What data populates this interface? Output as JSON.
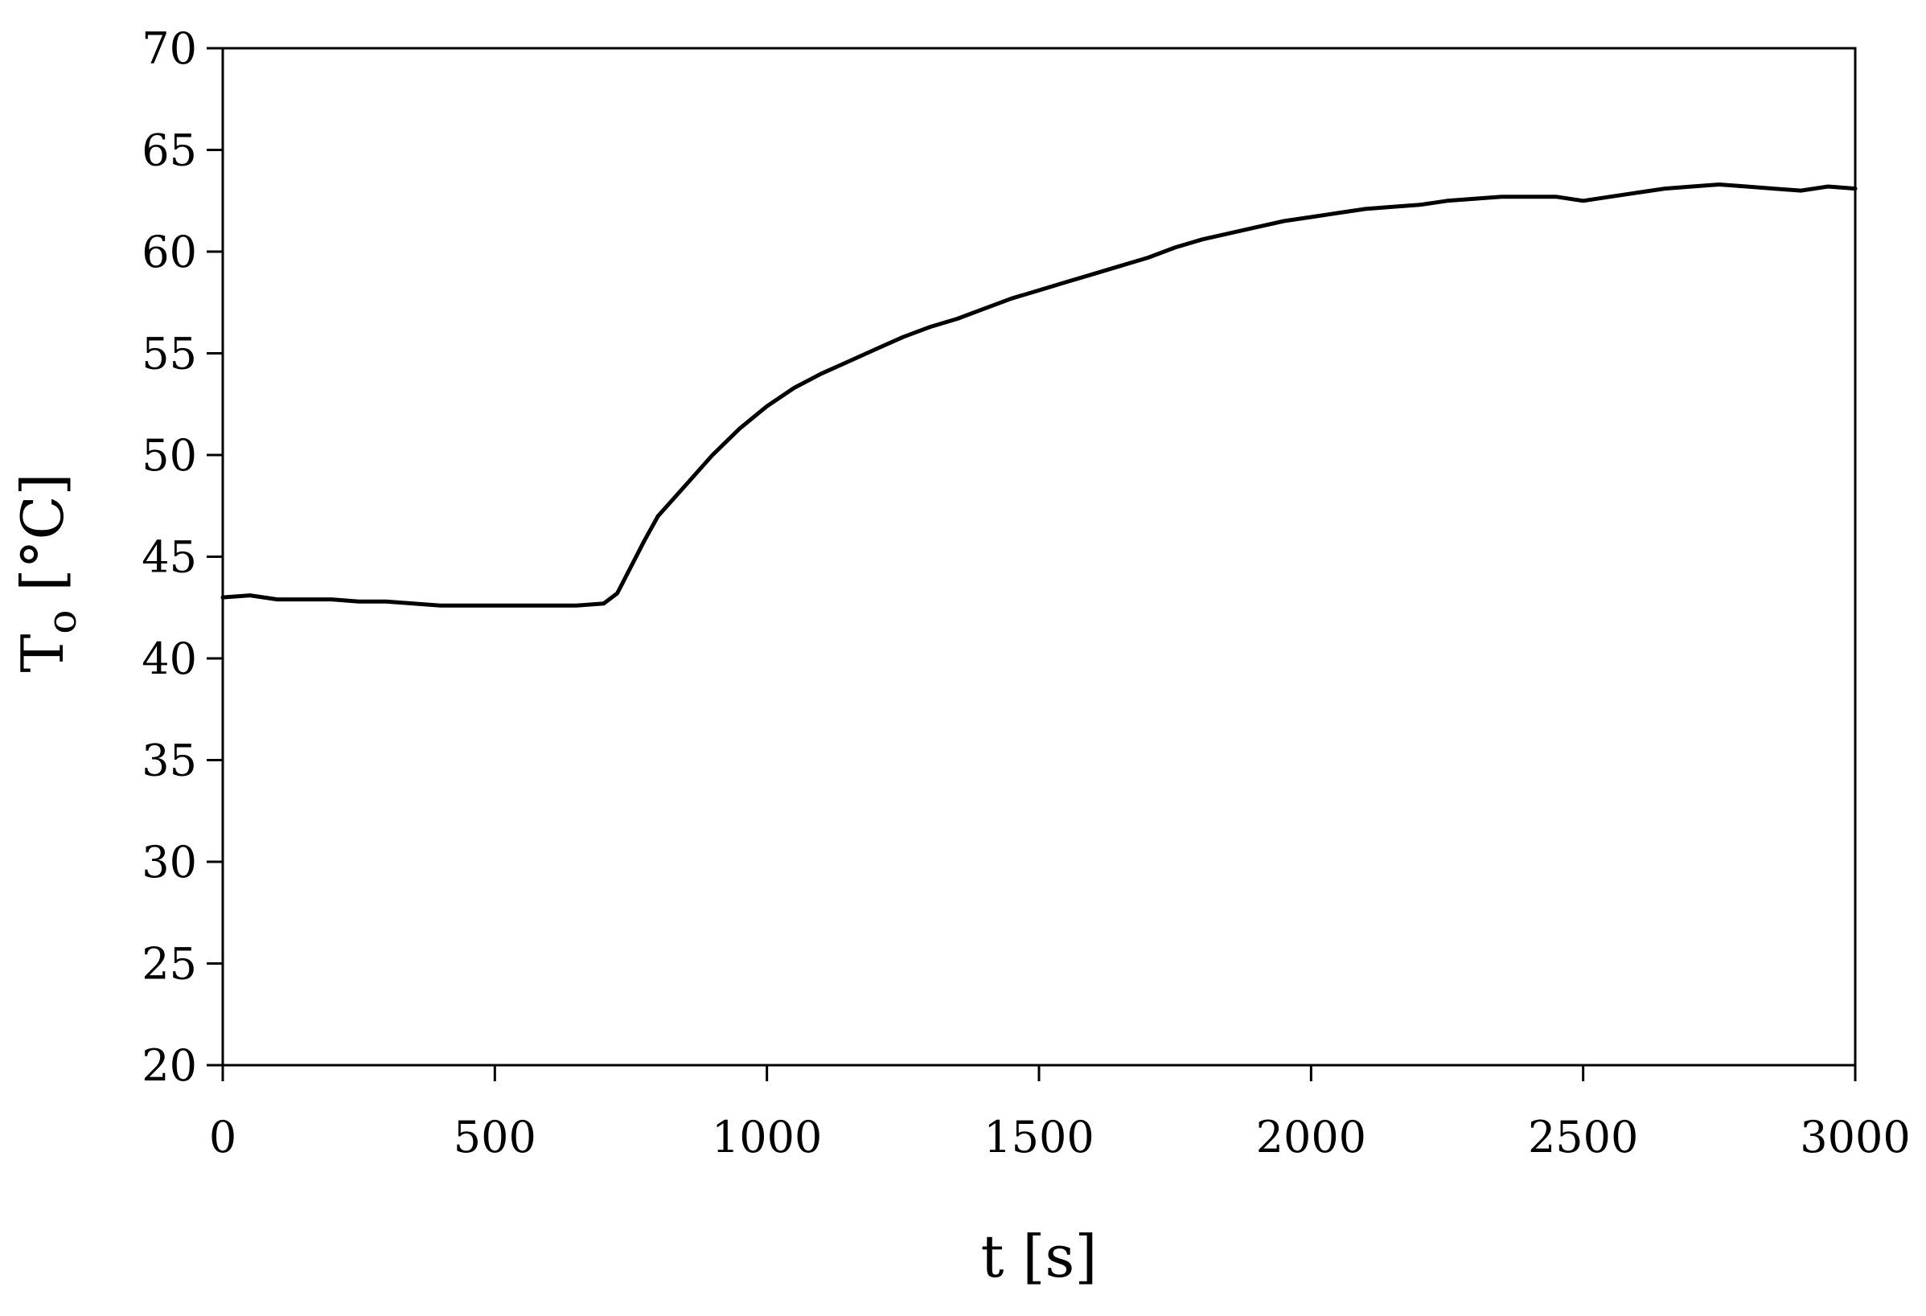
{
  "chart_data": {
    "type": "line",
    "title": "",
    "xlabel": "t [s]",
    "ylabel": {
      "main": "T",
      "sub": "o",
      "unit": " [°C]"
    },
    "xlim": [
      0,
      3000
    ],
    "ylim": [
      20,
      70
    ],
    "xticks": [
      0,
      500,
      1000,
      1500,
      2000,
      2500,
      3000
    ],
    "yticks": [
      20,
      25,
      30,
      35,
      40,
      45,
      50,
      55,
      60,
      65,
      70
    ],
    "grid": false,
    "legend": "none",
    "colors": {
      "line": "#000000",
      "axis": "#000000",
      "background": "#ffffff"
    },
    "series": [
      {
        "x": [
          0,
          50,
          100,
          150,
          200,
          250,
          300,
          350,
          400,
          450,
          500,
          550,
          600,
          650,
          700,
          725,
          750,
          775,
          800,
          850,
          900,
          950,
          1000,
          1050,
          1100,
          1150,
          1200,
          1250,
          1300,
          1350,
          1400,
          1450,
          1500,
          1550,
          1600,
          1650,
          1700,
          1750,
          1800,
          1850,
          1900,
          1950,
          2000,
          2050,
          2100,
          2150,
          2200,
          2250,
          2300,
          2350,
          2400,
          2450,
          2500,
          2550,
          2600,
          2650,
          2700,
          2750,
          2800,
          2850,
          2900,
          2950,
          3000
        ],
        "values": [
          43.0,
          43.1,
          42.9,
          42.9,
          42.9,
          42.8,
          42.8,
          42.7,
          42.6,
          42.6,
          42.6,
          42.6,
          42.6,
          42.6,
          42.7,
          43.2,
          44.5,
          45.8,
          47.0,
          48.5,
          50.0,
          51.3,
          52.4,
          53.3,
          54.0,
          54.6,
          55.2,
          55.8,
          56.3,
          56.7,
          57.2,
          57.7,
          58.1,
          58.5,
          58.9,
          59.3,
          59.7,
          60.2,
          60.6,
          60.9,
          61.2,
          61.5,
          61.7,
          61.9,
          62.1,
          62.2,
          62.3,
          62.5,
          62.6,
          62.7,
          62.7,
          62.7,
          62.5,
          62.7,
          62.9,
          63.1,
          63.2,
          63.3,
          63.2,
          63.1,
          63.0,
          63.2,
          63.1
        ]
      }
    ]
  }
}
